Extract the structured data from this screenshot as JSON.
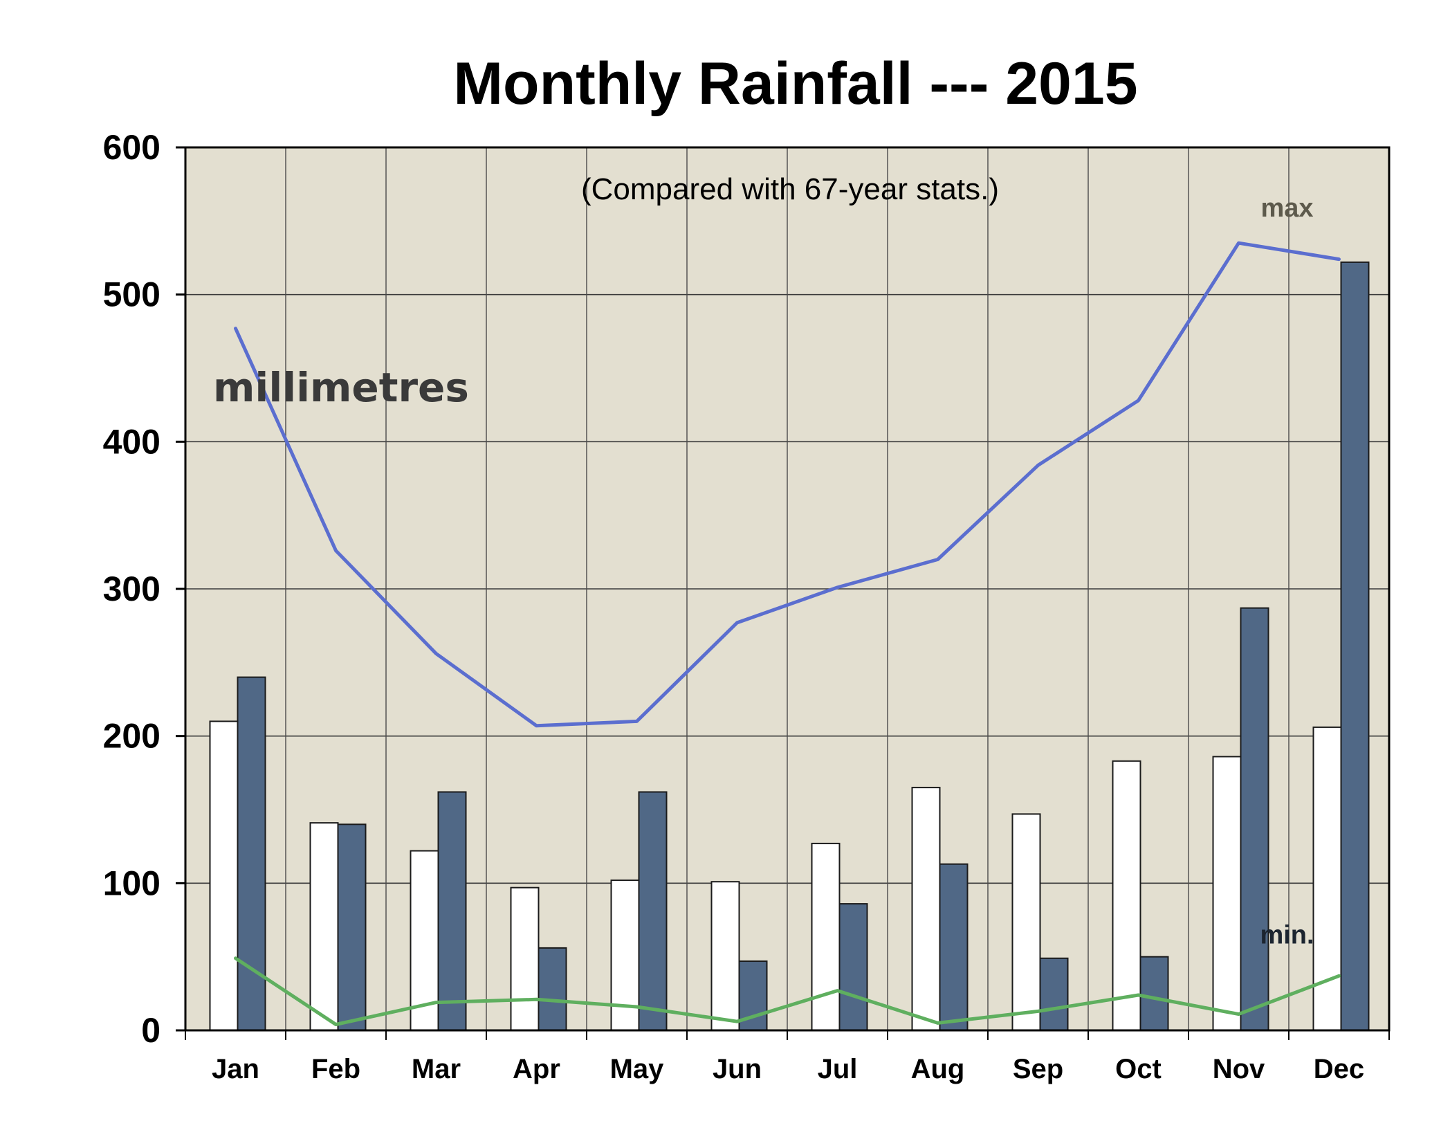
{
  "chart_data": {
    "type": "bar",
    "title": "Monthly Rainfall --- 2015",
    "subtitle": "(Compared with 67-year stats.)",
    "unit_label": "millimetres",
    "categories": [
      "Jan",
      "Feb",
      "Mar",
      "Apr",
      "May",
      "Jun",
      "Jul",
      "Aug",
      "Sep",
      "Oct",
      "Nov",
      "Dec"
    ],
    "series": [
      {
        "kind": "bar",
        "color": "#ffffff",
        "values": [
          210,
          141,
          122,
          97,
          102,
          101,
          127,
          165,
          147,
          183,
          186,
          206
        ]
      },
      {
        "kind": "bar",
        "color": "#506886",
        "values": [
          240,
          140,
          162,
          56,
          162,
          47,
          86,
          113,
          49,
          50,
          287,
          522
        ]
      },
      {
        "kind": "line",
        "name": "max",
        "color": "#5b6ecf",
        "values": [
          477,
          326,
          256,
          207,
          210,
          277,
          301,
          320,
          384,
          428,
          535,
          524
        ]
      },
      {
        "kind": "line",
        "name": "min.",
        "color": "#5faf5f",
        "values": [
          49,
          4,
          19,
          21,
          16,
          6,
          27,
          5,
          13,
          24,
          11,
          37
        ]
      }
    ],
    "yticks": [
      0,
      100,
      200,
      300,
      400,
      500,
      600
    ],
    "ylim": [
      0,
      600
    ],
    "grid": true,
    "plot_background": "#e3dfd0"
  }
}
